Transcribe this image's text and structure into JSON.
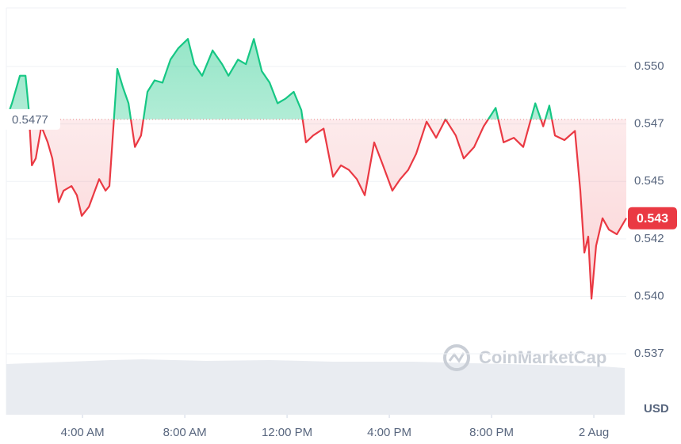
{
  "chart_data": {
    "type": "line",
    "baseline": 0.5477,
    "price_tag": "0.543",
    "y_axis_label": "USD",
    "watermark": "CoinMarketCap",
    "up_color": "#16c784",
    "down_color": "#ea3943",
    "grid": true,
    "xlim": [
      1.02,
      25.27
    ],
    "ylim": [
      0.53485,
      0.55255
    ],
    "xticks": [
      {
        "value": 4,
        "label": "4:00 AM"
      },
      {
        "value": 8,
        "label": "8:00 AM"
      },
      {
        "value": 12,
        "label": "12:00 PM"
      },
      {
        "value": 16,
        "label": "4:00 PM"
      },
      {
        "value": 20,
        "label": "8:00 PM"
      },
      {
        "value": 24,
        "label": "2 Aug"
      }
    ],
    "yticks": [
      {
        "value": 0.55,
        "label": "0.550"
      },
      {
        "value": 0.5475,
        "label": "0.547"
      },
      {
        "value": 0.545,
        "label": "0.545"
      },
      {
        "value": 0.5425,
        "label": "0.542"
      },
      {
        "value": 0.54,
        "label": "0.540"
      },
      {
        "value": 0.5375,
        "label": "0.537"
      }
    ],
    "x": [
      1.02,
      1.24,
      1.55,
      1.77,
      1.89,
      2.02,
      2.17,
      2.39,
      2.64,
      2.82,
      3.07,
      3.26,
      3.57,
      3.78,
      3.97,
      4.25,
      4.65,
      4.9,
      5.05,
      5.36,
      5.58,
      5.8,
      6.05,
      6.29,
      6.54,
      6.82,
      7.13,
      7.44,
      7.75,
      8.12,
      8.37,
      8.68,
      9.09,
      9.46,
      9.71,
      10.08,
      10.39,
      10.7,
      11.01,
      11.32,
      11.63,
      11.94,
      12.26,
      12.56,
      12.74,
      13.02,
      13.43,
      13.8,
      14.11,
      14.42,
      14.73,
      15.04,
      15.41,
      15.72,
      16.12,
      16.43,
      16.74,
      17.05,
      17.46,
      17.83,
      18.2,
      18.6,
      18.91,
      19.32,
      19.69,
      20.16,
      20.47,
      20.87,
      21.24,
      21.71,
      22.02,
      22.26,
      22.48,
      22.85,
      23.26,
      23.47,
      23.63,
      23.78,
      23.91,
      24.09,
      24.34,
      24.59,
      24.9,
      25.27
    ],
    "values": [
      0.5477,
      0.5484,
      0.5496,
      0.5496,
      0.5482,
      0.5457,
      0.546,
      0.5474,
      0.5467,
      0.546,
      0.5441,
      0.5446,
      0.5448,
      0.5444,
      0.5435,
      0.5439,
      0.5451,
      0.5446,
      0.5448,
      0.5499,
      0.5491,
      0.5484,
      0.5465,
      0.547,
      0.5489,
      0.5494,
      0.5493,
      0.5503,
      0.5508,
      0.5512,
      0.5501,
      0.5496,
      0.5507,
      0.5501,
      0.5496,
      0.5503,
      0.5501,
      0.5512,
      0.5498,
      0.5493,
      0.5484,
      0.5486,
      0.5489,
      0.5481,
      0.5467,
      0.547,
      0.5473,
      0.5452,
      0.5457,
      0.5455,
      0.5451,
      0.5444,
      0.5467,
      0.5458,
      0.5446,
      0.5451,
      0.5455,
      0.5462,
      0.5476,
      0.5469,
      0.5477,
      0.547,
      0.546,
      0.5465,
      0.5474,
      0.5482,
      0.5467,
      0.5469,
      0.5465,
      0.5484,
      0.5474,
      0.5483,
      0.547,
      0.5468,
      0.5472,
      0.5446,
      0.5419,
      0.5426,
      0.5399,
      0.5422,
      0.5434,
      0.5429,
      0.5427,
      0.5434
    ]
  }
}
